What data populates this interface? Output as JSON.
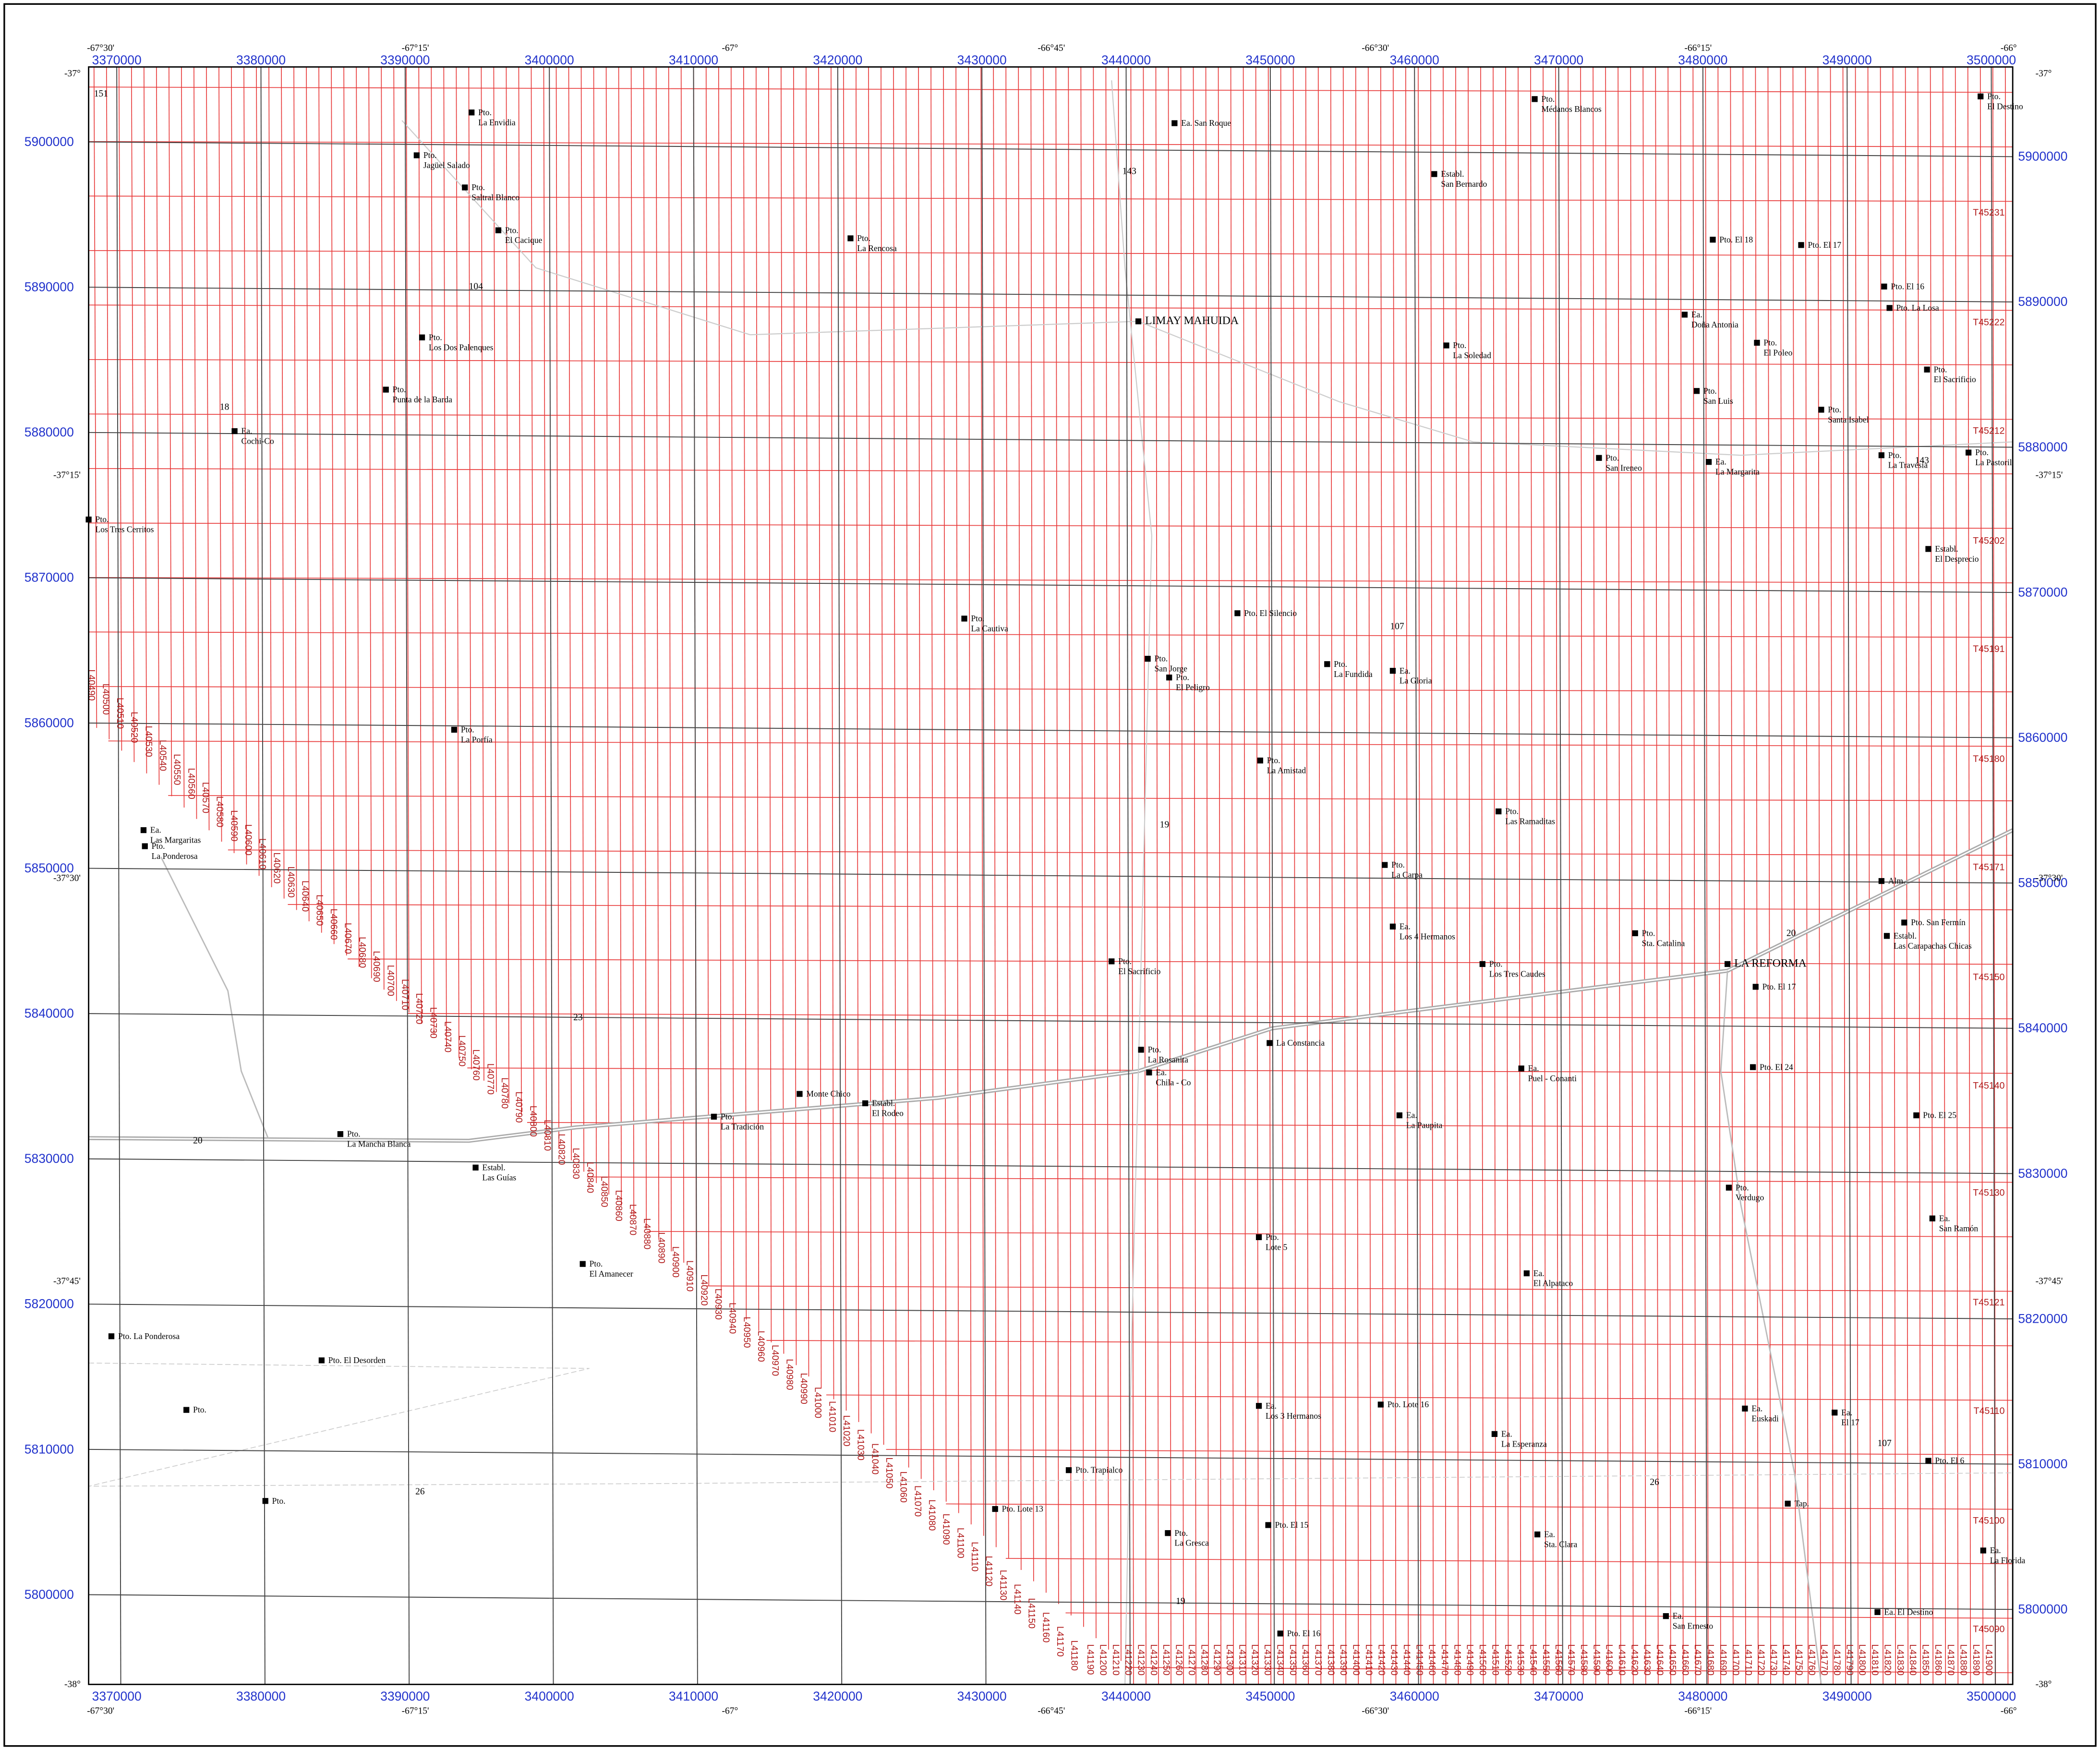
{
  "grid": {
    "eastings": [
      3370000,
      3380000,
      3390000,
      3400000,
      3410000,
      3420000,
      3430000,
      3440000,
      3450000,
      3460000,
      3470000,
      3480000,
      3490000,
      3500000
    ],
    "northings": [
      5800000,
      5810000,
      5820000,
      5830000,
      5840000,
      5850000,
      5860000,
      5870000,
      5880000,
      5890000,
      5900000
    ]
  },
  "graticule": {
    "longitudes": [
      "-67°30'",
      "-67°15'",
      "-67°",
      "-66°45'",
      "-66°30'",
      "-66°15'",
      "-66°"
    ],
    "latitudes": [
      "-37°",
      "-37°15'",
      "-37°30'",
      "-37°45'",
      "-38°"
    ]
  },
  "line_labels": [
    "L40490",
    "L40500",
    "L40510",
    "L40520",
    "L40530",
    "L40540",
    "L40550",
    "L40560",
    "L40570",
    "L40580",
    "L40590",
    "L40600",
    "L40610",
    "L40620",
    "L40630",
    "L40640",
    "L40650",
    "L40660",
    "L40670",
    "L40680",
    "L40690",
    "L40700",
    "L40710",
    "L40720",
    "L40730",
    "L40740",
    "L40750",
    "L40760",
    "L40770",
    "L40780",
    "L40790",
    "L40800",
    "L40810",
    "L40820",
    "L40830",
    "L40840",
    "L40850",
    "L40860",
    "L40870",
    "L40880",
    "L40890",
    "L40900",
    "L40910",
    "L40920",
    "L40930",
    "L40940",
    "L40950",
    "L40960",
    "L40970",
    "L40980",
    "L40990",
    "L41000",
    "L41010",
    "L41020",
    "L41030",
    "L41040",
    "L41050",
    "L41060",
    "L41070",
    "L41080",
    "L41090",
    "L41100",
    "L41110",
    "L41120",
    "L41130",
    "L41140",
    "L41150",
    "L41160",
    "L41170",
    "L41180",
    "L41190",
    "L41200",
    "L41210",
    "L41220",
    "L41230",
    "L41240",
    "L41250",
    "L41260",
    "L41270",
    "L41280",
    "L41290",
    "L41300",
    "L41310",
    "L41320",
    "L41330",
    "L41340",
    "L41350",
    "L41360",
    "L41370",
    "L41380",
    "L41390",
    "L41400",
    "L41410",
    "L41420",
    "L41430",
    "L41440",
    "L41450",
    "L41460",
    "L41470",
    "L41480",
    "L41490",
    "L41500",
    "L41510",
    "L41520",
    "L41530",
    "L41540",
    "L41550",
    "L41560",
    "L41570",
    "L41580",
    "L41590",
    "L41600",
    "L41610",
    "L41620",
    "L41630",
    "L41640",
    "L41650",
    "L41660",
    "L41670",
    "L41680",
    "L41690",
    "L41700",
    "L41710",
    "L41720",
    "L41730",
    "L41740",
    "L41750",
    "L41760",
    "L41770",
    "L41780",
    "L41790",
    "L41800",
    "L41810",
    "L41820",
    "L41830",
    "L41840",
    "L41850",
    "L41860",
    "L41870",
    "L41880",
    "L41890",
    "L41900"
  ],
  "block_labels": [
    "T45231",
    "T45222",
    "T45212",
    "T45202",
    "T45191",
    "T45180",
    "T45171",
    "T45150",
    "T45140",
    "T45130",
    "T45121",
    "T45110",
    "T45100",
    "T45090"
  ],
  "routes": [
    "151",
    "104",
    "18",
    "143",
    "143",
    "107",
    "19",
    "23",
    "20",
    "20",
    "26",
    "26",
    "19",
    "107"
  ],
  "places": [
    {
      "lines": [
        "Pto.",
        "Jagüel Salado"
      ]
    },
    {
      "lines": [
        "Pto.",
        "La Envidia"
      ]
    },
    {
      "lines": [
        "Pto.",
        "Saltral Blanco"
      ]
    },
    {
      "lines": [
        "Pto.",
        "El Cacique"
      ]
    },
    {
      "lines": [
        "Pto.",
        "Los Dos Palenques"
      ]
    },
    {
      "lines": [
        "Pto.",
        "Punta de la Barda"
      ]
    },
    {
      "lines": [
        "Ea.",
        "Cochi-Co"
      ]
    },
    {
      "lines": [
        "Pto.",
        "Los Tres Cerritos"
      ]
    },
    {
      "lines": [
        "Pto.",
        "La Porfía"
      ]
    },
    {
      "lines": [
        "Ea.",
        "Las Margaritas"
      ]
    },
    {
      "lines": [
        "Pto.",
        "La Ponderosa"
      ]
    },
    {
      "lines": [
        "Pto.",
        "La Mancha Blanca"
      ]
    },
    {
      "lines": [
        "Establ.",
        "Las Guías"
      ]
    },
    {
      "lines": [
        "Pto.",
        "El Amanecer"
      ]
    },
    {
      "lines": [
        "Pto. La Ponderosa"
      ]
    },
    {
      "lines": [
        "Pto. El Desorden"
      ]
    },
    {
      "lines": [
        "Pto."
      ]
    },
    {
      "lines": [
        "Pto."
      ]
    },
    {
      "lines": [
        "Pto.",
        "La Rencosa"
      ]
    },
    {
      "lines": [
        "Ea. San Roque"
      ]
    },
    {
      "lines": [
        "LIMAY MAHUIDA"
      ]
    },
    {
      "lines": [
        "Pto.",
        "La Cautiva"
      ]
    },
    {
      "lines": [
        "Monte Chico"
      ]
    },
    {
      "lines": [
        "Pto.",
        "La Tradición"
      ]
    },
    {
      "lines": [
        "Establ.",
        "El Rodeo"
      ]
    },
    {
      "lines": [
        "Pto.",
        "La Rosanita"
      ]
    },
    {
      "lines": [
        "Ea.",
        "Chila - Co"
      ]
    },
    {
      "lines": [
        "Pto.",
        "El Sacrificio"
      ]
    },
    {
      "lines": [
        "La Constancia"
      ]
    },
    {
      "lines": [
        "Pto. El Silencio"
      ]
    },
    {
      "lines": [
        "Pto.",
        "San Jorge"
      ]
    },
    {
      "lines": [
        "Pto.",
        "El Peligro"
      ]
    },
    {
      "lines": [
        "Pto.",
        "La Fundida"
      ]
    },
    {
      "lines": [
        "Ea.",
        "La Gloria"
      ]
    },
    {
      "lines": [
        "Pto.",
        "La Amistad"
      ]
    },
    {
      "lines": [
        "Pto.",
        "Las Ramaditas"
      ]
    },
    {
      "lines": [
        "Pto.",
        "La Carpa"
      ]
    },
    {
      "lines": [
        "Ea.",
        "Los 4 Hermanos"
      ]
    },
    {
      "lines": [
        "Pto.",
        "Los Tres Caudes"
      ]
    },
    {
      "lines": [
        "Ea.",
        "La Paupita"
      ]
    },
    {
      "lines": [
        "Pto.",
        "Lote 5"
      ]
    },
    {
      "lines": [
        "Ea.",
        "El Alpataco"
      ]
    },
    {
      "lines": [
        "Ea.",
        "Los 3 Hermanos"
      ]
    },
    {
      "lines": [
        "Pto. Lote 16"
      ]
    },
    {
      "lines": [
        "Ea.",
        "La Esperanza"
      ]
    },
    {
      "lines": [
        "Pto. Trapialco"
      ]
    },
    {
      "lines": [
        "Pto. Lote 13"
      ]
    },
    {
      "lines": [
        "Pto. El 15"
      ]
    },
    {
      "lines": [
        "Pto.",
        "La Gresca"
      ]
    },
    {
      "lines": [
        "Ea.",
        "Sta. Clara"
      ]
    },
    {
      "lines": [
        "Pto. El 16"
      ]
    },
    {
      "lines": [
        "Ea.",
        "San Ernesto"
      ]
    },
    {
      "lines": [
        "Pto.",
        "Médanos Blancos"
      ]
    },
    {
      "lines": [
        "Establ.",
        "San Bernardo"
      ]
    },
    {
      "lines": [
        "Pto. El 18"
      ]
    },
    {
      "lines": [
        "Pto. El 17"
      ]
    },
    {
      "lines": [
        "Pto. El 16"
      ]
    },
    {
      "lines": [
        "Ea.",
        "Doña Antonia"
      ]
    },
    {
      "lines": [
        "Pto. La Losa"
      ]
    },
    {
      "lines": [
        "Pto.",
        "La Soledad"
      ]
    },
    {
      "lines": [
        "Pto.",
        "El Poleo"
      ]
    },
    {
      "lines": [
        "Pto.",
        "San Luis"
      ]
    },
    {
      "lines": [
        "Pto.",
        "Santa Isabel"
      ]
    },
    {
      "lines": [
        "Pto.",
        "El Sacrificio"
      ]
    },
    {
      "lines": [
        "Pto.",
        "San Ireneo"
      ]
    },
    {
      "lines": [
        "Ea.",
        "La Margarita"
      ]
    },
    {
      "lines": [
        "Pto.",
        "La Travesía"
      ]
    },
    {
      "lines": [
        "Pto.",
        "La Pastoril"
      ]
    },
    {
      "lines": [
        "Pto.",
        "El Destino"
      ]
    },
    {
      "lines": [
        "Establ.",
        "El Desprecio"
      ]
    },
    {
      "lines": [
        "Pto.",
        "Sta. Catalina"
      ]
    },
    {
      "lines": [
        "Pto. San Fermín"
      ]
    },
    {
      "lines": [
        "Establ.",
        "Las Carapachas Chicas"
      ]
    },
    {
      "lines": [
        "LA REFORMA"
      ]
    },
    {
      "lines": [
        "Pto. El 17"
      ]
    },
    {
      "lines": [
        "Pto. El 24"
      ]
    },
    {
      "lines": [
        "Ea.",
        "Puel - Conanti"
      ]
    },
    {
      "lines": [
        "Pto. El 25"
      ]
    },
    {
      "lines": [
        "Pto.",
        "Verdugo"
      ]
    },
    {
      "lines": [
        "Ea.",
        "San Ramón"
      ]
    },
    {
      "lines": [
        "Ea.",
        "Euskadi"
      ]
    },
    {
      "lines": [
        "Ea.",
        "El 17"
      ]
    },
    {
      "lines": [
        "Pto. El 6"
      ]
    },
    {
      "lines": [
        "Tap."
      ]
    },
    {
      "lines": [
        "Ea.",
        "La Florida"
      ]
    },
    {
      "lines": [
        "Ea. El Destino"
      ]
    },
    {
      "lines": [
        "Alm."
      ]
    }
  ]
}
